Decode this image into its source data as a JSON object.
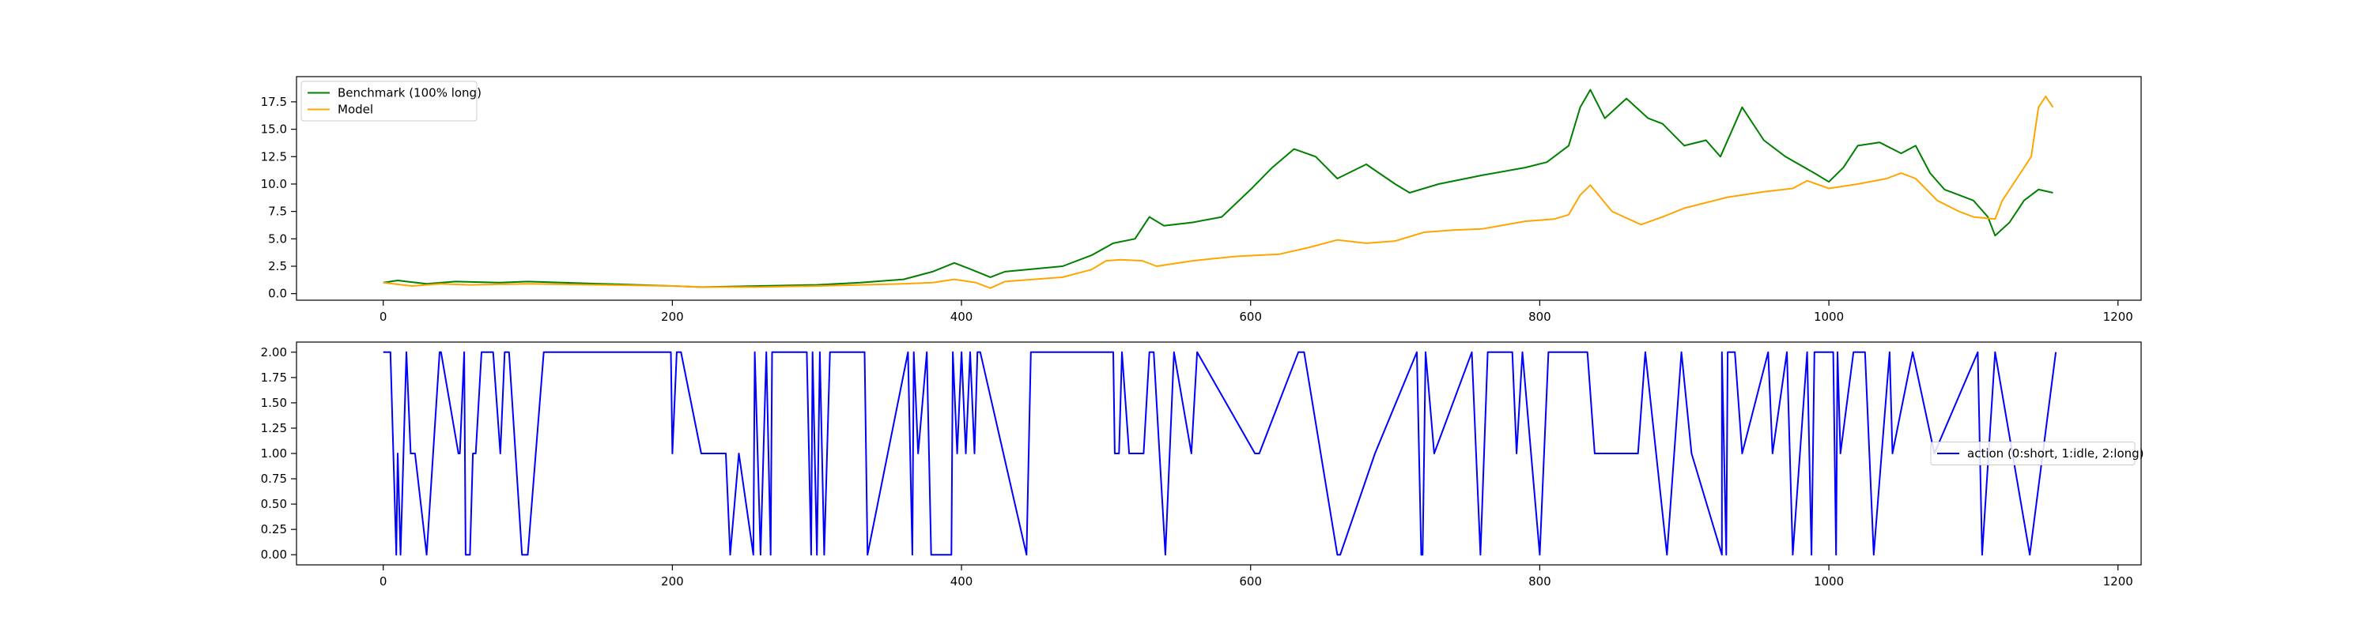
{
  "chart_data": [
    {
      "type": "line",
      "title": "",
      "xlabel": "",
      "ylabel": "",
      "xlim": [
        -60,
        1216
      ],
      "ylim": [
        -0.6,
        19.8
      ],
      "xticks": [
        0,
        200,
        400,
        600,
        800,
        1000,
        1200
      ],
      "yticks": [
        0.0,
        2.5,
        5.0,
        7.5,
        10.0,
        12.5,
        15.0,
        17.5
      ],
      "ytick_labels": [
        "0.0",
        "2.5",
        "5.0",
        "7.5",
        "10.0",
        "12.5",
        "15.0",
        "17.5"
      ],
      "grid": false,
      "legend": "top-left",
      "series": [
        {
          "name": "Benchmark (100% long)",
          "color": "#008000",
          "x": [
            0,
            10,
            30,
            50,
            80,
            100,
            150,
            200,
            220,
            260,
            300,
            330,
            360,
            380,
            395,
            405,
            420,
            430,
            470,
            490,
            505,
            520,
            530,
            540,
            560,
            580,
            600,
            615,
            630,
            645,
            660,
            680,
            700,
            710,
            730,
            760,
            790,
            805,
            820,
            828,
            835,
            845,
            860,
            875,
            885,
            900,
            915,
            925,
            940,
            955,
            970,
            990,
            1000,
            1010,
            1020,
            1035,
            1050,
            1060,
            1070,
            1080,
            1090,
            1100,
            1110,
            1115,
            1125,
            1135,
            1145,
            1155
          ],
          "y": [
            1.0,
            1.2,
            0.9,
            1.1,
            1.0,
            1.1,
            0.9,
            0.7,
            0.6,
            0.7,
            0.8,
            1.0,
            1.3,
            2.0,
            2.8,
            2.3,
            1.5,
            2.0,
            2.5,
            3.5,
            4.6,
            5.0,
            7.0,
            6.2,
            6.5,
            7.0,
            9.5,
            11.5,
            13.2,
            12.5,
            10.5,
            11.8,
            10.0,
            9.2,
            10.0,
            10.8,
            11.5,
            12.0,
            13.5,
            17.0,
            18.6,
            16.0,
            17.8,
            16.0,
            15.5,
            13.5,
            14.0,
            12.5,
            17.0,
            14.0,
            12.5,
            11.0,
            10.2,
            11.5,
            13.5,
            13.8,
            12.8,
            13.5,
            11.0,
            9.5,
            9.0,
            8.5,
            7.0,
            5.3,
            6.5,
            8.5,
            9.5,
            9.2
          ]
        },
        {
          "name": "Model",
          "color": "#ffa500",
          "x": [
            0,
            20,
            40,
            60,
            100,
            150,
            200,
            220,
            260,
            300,
            330,
            360,
            380,
            395,
            410,
            420,
            430,
            470,
            490,
            500,
            510,
            525,
            535,
            560,
            590,
            620,
            640,
            660,
            680,
            700,
            720,
            740,
            760,
            790,
            810,
            820,
            828,
            835,
            850,
            870,
            885,
            900,
            930,
            955,
            975,
            985,
            1000,
            1020,
            1040,
            1050,
            1060,
            1075,
            1090,
            1100,
            1115,
            1120,
            1130,
            1140,
            1145,
            1150,
            1155
          ],
          "y": [
            1.0,
            0.7,
            0.9,
            0.8,
            0.9,
            0.8,
            0.7,
            0.6,
            0.6,
            0.7,
            0.8,
            0.9,
            1.0,
            1.3,
            1.0,
            0.5,
            1.1,
            1.5,
            2.2,
            3.0,
            3.1,
            3.0,
            2.5,
            3.0,
            3.4,
            3.6,
            4.2,
            4.9,
            4.6,
            4.8,
            5.6,
            5.8,
            5.9,
            6.6,
            6.8,
            7.2,
            9.0,
            9.9,
            7.5,
            6.3,
            7.0,
            7.8,
            8.8,
            9.3,
            9.6,
            10.3,
            9.6,
            10.0,
            10.5,
            11.0,
            10.5,
            8.5,
            7.5,
            7.0,
            6.8,
            8.5,
            10.5,
            12.5,
            17.0,
            18.0,
            17.0
          ]
        }
      ]
    },
    {
      "type": "line",
      "title": "",
      "xlabel": "",
      "ylabel": "",
      "xlim": [
        -60,
        1216
      ],
      "ylim": [
        -0.1,
        2.1
      ],
      "xticks": [
        0,
        200,
        400,
        600,
        800,
        1000,
        1200
      ],
      "yticks": [
        0.0,
        0.25,
        0.5,
        0.75,
        1.0,
        1.25,
        1.5,
        1.75,
        2.0
      ],
      "ytick_labels": [
        "0.00",
        "0.25",
        "0.50",
        "0.75",
        "1.00",
        "1.25",
        "1.50",
        "1.75",
        "2.00"
      ],
      "grid": false,
      "legend": "center-right",
      "series": [
        {
          "name": "action (0:short, 1:idle, 2:long)",
          "color": "#0000ff",
          "x": [
            0,
            5,
            7,
            9,
            10,
            12,
            14,
            16,
            19,
            22,
            30,
            39,
            40,
            52,
            53,
            56,
            57,
            60,
            62,
            64,
            68,
            76,
            81,
            84,
            87,
            96,
            100,
            111,
            199,
            200,
            203,
            206,
            220,
            237,
            240,
            246,
            256,
            257,
            261,
            265,
            268,
            269,
            293,
            296,
            297,
            300,
            302,
            305,
            309,
            333,
            335,
            363,
            366,
            367,
            370,
            376,
            379,
            393,
            394,
            397,
            400,
            403,
            406,
            409,
            411,
            413,
            445,
            448,
            505,
            506,
            509,
            511,
            516,
            526,
            530,
            533,
            537,
            541,
            547,
            559,
            563,
            603,
            606,
            633,
            637,
            660,
            662,
            686,
            715,
            718,
            719,
            721,
            727,
            753,
            756,
            759,
            764,
            781,
            784,
            788,
            794,
            800,
            806,
            833,
            838,
            868,
            873,
            888,
            898,
            905,
            926,
            926,
            929,
            930,
            935,
            940,
            958,
            961,
            971,
            975,
            985,
            988,
            990,
            1003,
            1005,
            1006,
            1008,
            1017,
            1025,
            1031,
            1042,
            1044,
            1058,
            1073,
            1103,
            1106,
            1115,
            1139,
            1157
          ],
          "y": [
            2,
            2,
            1,
            0,
            1,
            0,
            1,
            2,
            1,
            1,
            0,
            2,
            2,
            1,
            1,
            2,
            0,
            0,
            1,
            1,
            2,
            2,
            1,
            2,
            2,
            0,
            0,
            2,
            2,
            1,
            2,
            2,
            1,
            1,
            0,
            1,
            0,
            2,
            0,
            2,
            0,
            2,
            2,
            0,
            2,
            0,
            2,
            0,
            2,
            2,
            0,
            2,
            0,
            2,
            1,
            2,
            0,
            0,
            2,
            1,
            2,
            1,
            2,
            1,
            2,
            2,
            0,
            2,
            2,
            1,
            1,
            2,
            1,
            1,
            2,
            2,
            1,
            0,
            2,
            1,
            2,
            1,
            1,
            2,
            2,
            0,
            0,
            1,
            2,
            0,
            0,
            2,
            1,
            2,
            1,
            0,
            2,
            2,
            1,
            2,
            1,
            0,
            2,
            2,
            1,
            1,
            2,
            0,
            2,
            1,
            0,
            2,
            0,
            2,
            2,
            1,
            2,
            1,
            2,
            0,
            2,
            0,
            2,
            2,
            0,
            2,
            1,
            2,
            2,
            0,
            2,
            1,
            2,
            1,
            2,
            0,
            2,
            0,
            2
          ]
        }
      ]
    }
  ]
}
